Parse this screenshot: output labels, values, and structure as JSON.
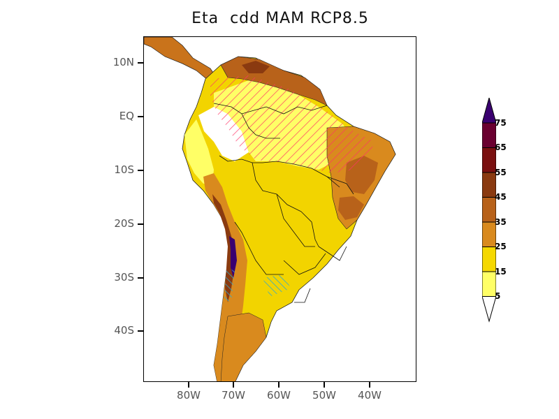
{
  "title": "Eta  cdd MAM RCP8.5",
  "y_axis_labels": [
    "10N",
    "EQ",
    "10S",
    "20S",
    "30S",
    "40S"
  ],
  "x_axis_labels": [
    "80W",
    "70W",
    "60W",
    "50W",
    "40W"
  ],
  "colorbar": {
    "labels": [
      "5",
      "15",
      "25",
      "35",
      "45",
      "55",
      "65",
      "75"
    ],
    "colors": [
      "#ffff66",
      "#f5d800",
      "#e8b000",
      "#d98a1e",
      "#b8621a",
      "#8a3a10",
      "#7a1010",
      "#6a0030",
      "#3a0070"
    ]
  },
  "map": {
    "hatch_color_positive": "#ff3366",
    "hatch_color_negative": "#33aacc",
    "ocean_color": "#ffffff"
  }
}
